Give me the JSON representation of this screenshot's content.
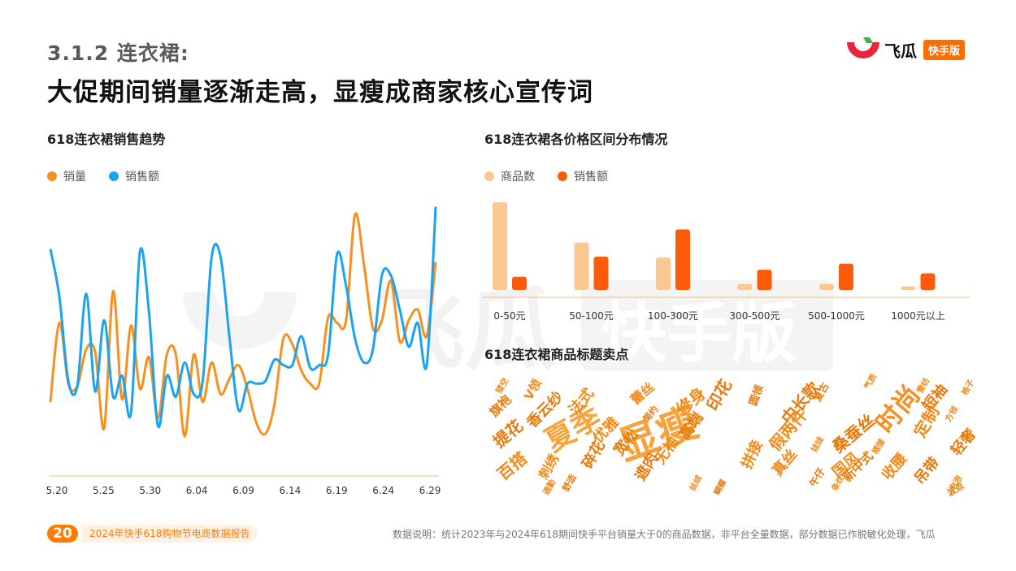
{
  "header": {
    "section_title": "3.1.2 连衣裙:",
    "main_title": "大促期间销量逐渐走高，显瘦成商家核心宣传词",
    "brand_name": "飞瓜",
    "brand_badge": "快手版"
  },
  "watermark": {
    "brand_name": "飞瓜",
    "brand_badge": "快手版"
  },
  "colors": {
    "orange": "#f7901e",
    "blue": "#1aa3f0",
    "light_orange": "#fcc891",
    "dark_orange": "#ff5a0a",
    "accent": "#ff7a00"
  },
  "footer": {
    "page_number": "20",
    "report_title": "2024年快手618购物节电商数据报告",
    "note": "数据说明：统计2023年与2024年618期间快手平台销量大于0的商品数据，非平台全量数据，部分数据已作脱敏化处理，飞瓜"
  },
  "chart_data": [
    {
      "type": "line",
      "title": "618连衣裙销售趋势",
      "x_tick_labels": [
        "5.20",
        "5.25",
        "5.30",
        "6.04",
        "6.09",
        "6.14",
        "6.19",
        "6.24",
        "6.29"
      ],
      "series": [
        {
          "name": "销量",
          "color": "#f7901e",
          "values": [
            20,
            50,
            27,
            26,
            40,
            39,
            10,
            62,
            21,
            49,
            25,
            37,
            14,
            38,
            38,
            7,
            38,
            20,
            35,
            23,
            29,
            34,
            25,
            12,
            8,
            19,
            44,
            42,
            32,
            27,
            27,
            52,
            50,
            51,
            91,
            72,
            48,
            51,
            66,
            43,
            51,
            55,
            45,
            73
          ]
        },
        {
          "name": "销售额",
          "color": "#1aa3f0",
          "values": [
            78,
            60,
            28,
            26,
            61,
            24,
            51,
            22,
            30,
            16,
            77,
            54,
            11,
            30,
            22,
            35,
            23,
            28,
            75,
            75,
            44,
            17,
            27,
            27,
            28,
            36,
            34,
            34,
            45,
            33,
            34,
            38,
            76,
            64,
            44,
            35,
            40,
            68,
            68,
            55,
            41,
            50,
            34,
            94
          ]
        }
      ],
      "ylim": [
        0,
        100
      ]
    },
    {
      "type": "bar",
      "title": "618连衣裙各价格区间分布情况",
      "categories": [
        "0-50元",
        "50-100元",
        "100-300元",
        "300-500元",
        "500-1000元",
        "1000元以上"
      ],
      "series": [
        {
          "name": "商品数",
          "color": "#fcc891",
          "values": [
            100,
            54,
            37,
            7,
            7,
            4
          ]
        },
        {
          "name": "销售额",
          "color": "#ff5a0a",
          "values": [
            15,
            38,
            69,
            23,
            30,
            19
          ]
        }
      ],
      "ylim": [
        0,
        100
      ]
    }
  ],
  "wordcloud": {
    "title": "618连衣裙商品标题卖点",
    "words": [
      {
        "text": "显瘦",
        "size": 50,
        "color": "#f7a33c"
      },
      {
        "text": "夏季",
        "size": 36,
        "color": "#f7a33c"
      },
      {
        "text": "时尚",
        "size": 32,
        "color": "#f7901e"
      },
      {
        "text": "修身",
        "size": 20,
        "color": "#f28a18"
      },
      {
        "text": "印花",
        "size": 20,
        "color": "#e87a0c"
      },
      {
        "text": "百搭",
        "size": 20,
        "color": "#f28a18"
      },
      {
        "text": "提花",
        "size": 20,
        "color": "#e87a0c"
      },
      {
        "text": "中长款",
        "size": 20,
        "color": "#e87a0c"
      },
      {
        "text": "假两件",
        "size": 20,
        "color": "#f28a18"
      },
      {
        "text": "桑蚕丝",
        "size": 20,
        "color": "#e87a0c"
      },
      {
        "text": "定制",
        "size": 20,
        "color": "#f28a18"
      },
      {
        "text": "国风",
        "size": 18,
        "color": "#f28a18"
      },
      {
        "text": "收腰",
        "size": 18,
        "color": "#f28a18"
      },
      {
        "text": "吊带",
        "size": 18,
        "color": "#e87a0c"
      },
      {
        "text": "短袖",
        "size": 18,
        "color": "#e87a0c"
      },
      {
        "text": "轻奢",
        "size": 18,
        "color": "#e87a0c"
      },
      {
        "text": "高端",
        "size": 18,
        "color": "#e87a0c"
      },
      {
        "text": "无袖",
        "size": 18,
        "color": "#f28a18"
      },
      {
        "text": "宽松",
        "size": 18,
        "color": "#e87a0c"
      },
      {
        "text": "遮肉",
        "size": 18,
        "color": "#e87a0c"
      },
      {
        "text": "优雅",
        "size": 18,
        "color": "#f28a18"
      },
      {
        "text": "碎花",
        "size": 18,
        "color": "#e87a0c"
      },
      {
        "text": "法式",
        "size": 18,
        "color": "#f28a18"
      },
      {
        "text": "香云纱",
        "size": 18,
        "color": "#e87a0c"
      },
      {
        "text": "拼接",
        "size": 18,
        "color": "#f28a18"
      },
      {
        "text": "真丝",
        "size": 18,
        "color": "#f28a18"
      },
      {
        "text": "新中式",
        "size": 15,
        "color": "#e87a0c"
      },
      {
        "text": "蕾丝",
        "size": 16,
        "color": "#f28a18"
      },
      {
        "text": "旗袍",
        "size": 15,
        "color": "#e87a0c"
      },
      {
        "text": "V领",
        "size": 15,
        "color": "#f28a18"
      },
      {
        "text": "圆领",
        "size": 13,
        "color": "#e87a0c"
      },
      {
        "text": "复古",
        "size": 12,
        "color": "#e87a0c"
      },
      {
        "text": "午仔",
        "size": 12,
        "color": "#e87a0c"
      },
      {
        "text": "刺绣",
        "size": 16,
        "color": "#f28a18"
      },
      {
        "text": "简约",
        "size": 11,
        "color": "#e87a0c"
      },
      {
        "text": "舒适",
        "size": 11,
        "color": "#e87a0c"
      },
      {
        "text": "蝴蝶",
        "size": 10,
        "color": "#e87a0c"
      },
      {
        "text": "丝绒",
        "size": 10,
        "color": "#f28a18"
      },
      {
        "text": "气质",
        "size": 10,
        "color": "#f28a18"
      },
      {
        "text": "方领",
        "size": 10,
        "color": "#f28a18"
      },
      {
        "text": "泡泡",
        "size": 10,
        "color": "#f28a18"
      },
      {
        "text": "雪纺",
        "size": 10,
        "color": "#f28a18"
      },
      {
        "text": "格子",
        "size": 10,
        "color": "#f28a18"
      },
      {
        "text": "褶皱",
        "size": 10,
        "color": "#f28a18"
      },
      {
        "text": "娃娃",
        "size": 10,
        "color": "#f28a18"
      },
      {
        "text": "条纹",
        "size": 10,
        "color": "#f28a18"
      },
      {
        "text": "通勤",
        "size": 10,
        "color": "#f28a18"
      },
      {
        "text": "波点",
        "size": 11,
        "color": "#e87a0c"
      },
      {
        "text": "镂空",
        "size": 10,
        "color": "#f28a18"
      }
    ]
  }
}
